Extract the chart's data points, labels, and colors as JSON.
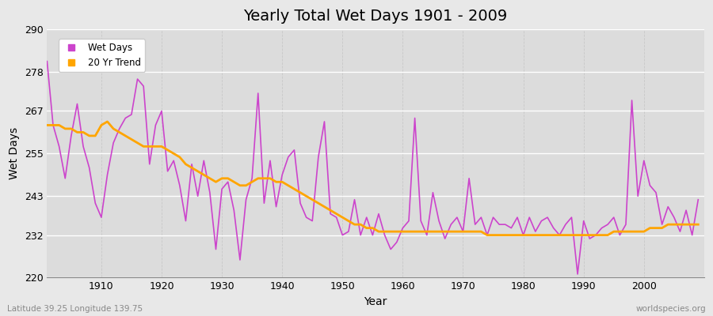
{
  "title": "Yearly Total Wet Days 1901 - 2009",
  "xlabel": "Year",
  "ylabel": "Wet Days",
  "lat_lon_label": "Latitude 39.25 Longitude 139.75",
  "watermark": "worldspecies.org",
  "ylim": [
    220,
    290
  ],
  "yticks": [
    220,
    232,
    243,
    255,
    267,
    278,
    290
  ],
  "xticks": [
    1910,
    1920,
    1930,
    1940,
    1950,
    1960,
    1970,
    1980,
    1990,
    2000
  ],
  "line_color": "#CC44CC",
  "trend_color": "#FFA500",
  "fig_bg_color": "#E8E8E8",
  "plot_bg_color": "#DCDCDC",
  "grid_color_h": "#FFFFFF",
  "grid_color_v": "#C8C8C8",
  "years": [
    1901,
    1902,
    1903,
    1904,
    1905,
    1906,
    1907,
    1908,
    1909,
    1910,
    1911,
    1912,
    1913,
    1914,
    1915,
    1916,
    1917,
    1918,
    1919,
    1920,
    1921,
    1922,
    1923,
    1924,
    1925,
    1926,
    1927,
    1928,
    1929,
    1930,
    1931,
    1932,
    1933,
    1934,
    1935,
    1936,
    1937,
    1938,
    1939,
    1940,
    1941,
    1942,
    1943,
    1944,
    1945,
    1946,
    1947,
    1948,
    1949,
    1950,
    1951,
    1952,
    1953,
    1954,
    1955,
    1956,
    1957,
    1958,
    1959,
    1960,
    1961,
    1962,
    1963,
    1964,
    1965,
    1966,
    1967,
    1968,
    1969,
    1970,
    1971,
    1972,
    1973,
    1974,
    1975,
    1976,
    1977,
    1978,
    1979,
    1980,
    1981,
    1982,
    1983,
    1984,
    1985,
    1986,
    1987,
    1988,
    1989,
    1990,
    1991,
    1992,
    1993,
    1994,
    1995,
    1996,
    1997,
    1998,
    1999,
    2000,
    2001,
    2002,
    2003,
    2004,
    2005,
    2006,
    2007,
    2008,
    2009
  ],
  "wet_days": [
    281,
    263,
    257,
    248,
    260,
    269,
    257,
    251,
    241,
    237,
    249,
    258,
    262,
    265,
    266,
    276,
    274,
    252,
    263,
    267,
    250,
    253,
    246,
    236,
    252,
    243,
    253,
    244,
    228,
    245,
    247,
    239,
    225,
    242,
    248,
    272,
    241,
    253,
    240,
    249,
    254,
    256,
    241,
    237,
    236,
    254,
    264,
    238,
    237,
    232,
    233,
    242,
    232,
    237,
    232,
    238,
    232,
    228,
    230,
    234,
    236,
    265,
    236,
    232,
    244,
    236,
    231,
    235,
    237,
    233,
    248,
    235,
    237,
    232,
    237,
    235,
    235,
    234,
    237,
    232,
    237,
    233,
    236,
    237,
    234,
    232,
    235,
    237,
    221,
    236,
    231,
    232,
    234,
    235,
    237,
    232,
    235,
    270,
    243,
    253,
    246,
    244,
    235,
    240,
    237,
    233,
    239,
    232,
    242
  ],
  "trend_values": [
    263,
    263,
    263,
    262,
    262,
    261,
    261,
    260,
    260,
    263,
    264,
    262,
    261,
    260,
    259,
    258,
    257,
    257,
    257,
    257,
    256,
    255,
    254,
    252,
    251,
    250,
    249,
    248,
    247,
    248,
    248,
    247,
    246,
    246,
    247,
    248,
    248,
    248,
    247,
    247,
    246,
    245,
    244,
    243,
    242,
    241,
    240,
    239,
    238,
    237,
    236,
    235,
    235,
    234,
    234,
    233,
    233,
    233,
    233,
    233,
    233,
    233,
    233,
    233,
    233,
    233,
    233,
    233,
    233,
    233,
    233,
    233,
    233,
    232,
    232,
    232,
    232,
    232,
    232,
    232,
    232,
    232,
    232,
    232,
    232,
    232,
    232,
    232,
    232,
    232,
    232,
    232,
    232,
    232,
    233,
    233,
    233,
    233,
    233,
    233,
    234,
    234,
    234,
    235,
    235,
    235,
    235,
    235,
    235
  ],
  "legend_labels": [
    "Wet Days",
    "20 Yr Trend"
  ],
  "title_fontsize": 14,
  "axis_fontsize": 9,
  "label_fontsize": 10
}
